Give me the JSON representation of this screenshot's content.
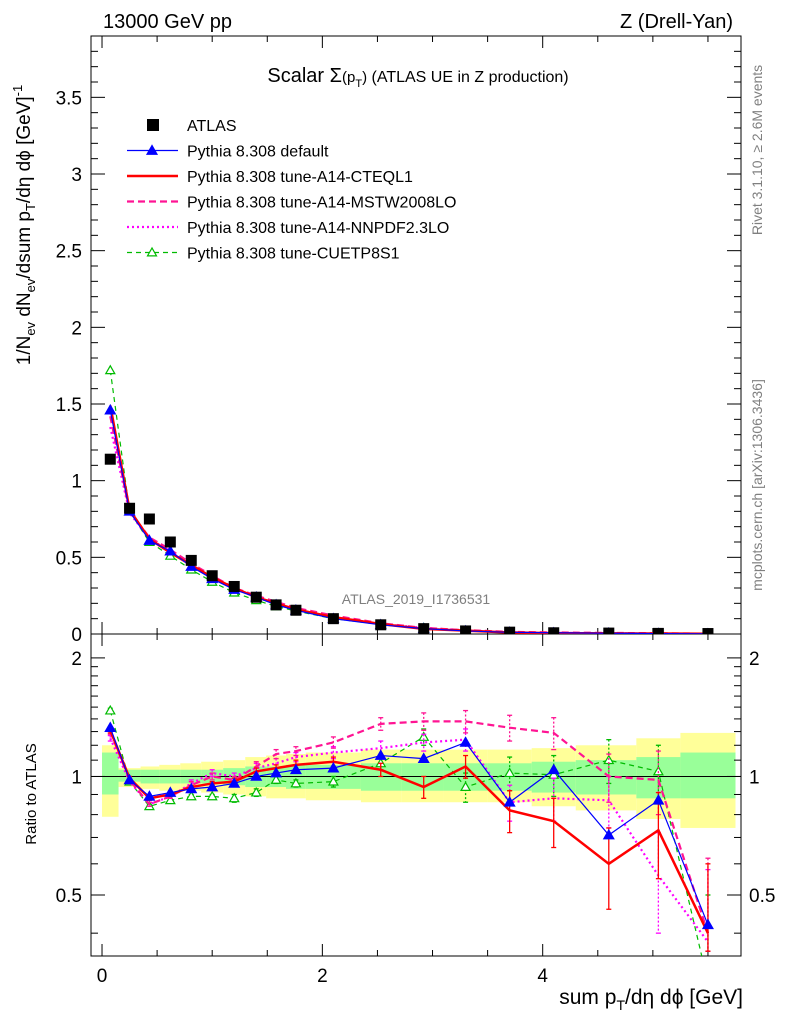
{
  "header": {
    "left": "13000 GeV pp",
    "right": "Z (Drell-Yan)"
  },
  "side_labels": {
    "rivet": "Rivet 3.1.10, ≥ 2.6M events",
    "mcplots": "mcplots.cern.ch [arXiv:1306.3436]"
  },
  "watermark": "ATLAS_2019_I1736531",
  "chart_data": {
    "type": "scatter",
    "title": {
      "main": "Scalar ",
      "sigma": "Σ",
      "paren_open": "(p",
      "sub": "T",
      "paren_close": ")",
      "rest": " (ATLAS UE in Z production)"
    },
    "xlabel": {
      "a": "sum p",
      "sub": "T",
      "b": "/dη dϕ [GeV]"
    },
    "ylabel": {
      "p1": "1/N",
      "p1_sub": "ev",
      "p2": " dN",
      "p2_sub": "ev",
      "p3": "/dsum p",
      "p3_sub": "T",
      "p4": "/dη dϕ  [GeV]",
      "p4_sup": "-1"
    },
    "ratio_ylabel": "Ratio to ATLAS",
    "xlim": [
      -0.1,
      5.8
    ],
    "ylim_main": [
      0,
      3.9
    ],
    "ylim_ratio": [
      0.35,
      2.3
    ],
    "xticks": [
      0,
      2,
      4
    ],
    "xtick_labels": [
      "0",
      "2",
      "4"
    ],
    "yticks_main": [
      0,
      0.5,
      1,
      1.5,
      2,
      2.5,
      3,
      3.5
    ],
    "ytick_labels_main": [
      "0",
      "0.5",
      "1",
      "1.5",
      "2",
      "2.5",
      "3",
      "3.5"
    ],
    "yticks_ratio": [
      0.5,
      1,
      2
    ],
    "ytick_labels_ratio": [
      "0.5",
      "1",
      "2"
    ],
    "x": [
      0.075,
      0.25,
      0.43,
      0.62,
      0.81,
      1.0,
      1.2,
      1.4,
      1.58,
      1.76,
      2.1,
      2.53,
      2.92,
      3.3,
      3.7,
      4.1,
      4.6,
      5.05,
      5.5
    ],
    "bin_edges": [
      0.0,
      0.15,
      0.35,
      0.52,
      0.71,
      0.9,
      1.1,
      1.3,
      1.49,
      1.67,
      1.85,
      2.35,
      2.72,
      3.1,
      3.5,
      3.9,
      4.3,
      4.85,
      5.25,
      5.75
    ],
    "band_inner": [
      [
        0.9,
        1.15
      ],
      [
        0.97,
        1.04
      ],
      [
        0.96,
        1.04
      ],
      [
        0.96,
        1.04
      ],
      [
        0.96,
        1.04
      ],
      [
        0.96,
        1.04
      ],
      [
        0.95,
        1.05
      ],
      [
        0.94,
        1.06
      ],
      [
        0.94,
        1.06
      ],
      [
        0.93,
        1.07
      ],
      [
        0.93,
        1.07
      ],
      [
        0.92,
        1.08
      ],
      [
        0.92,
        1.08
      ],
      [
        0.92,
        1.08
      ],
      [
        0.92,
        1.08
      ],
      [
        0.91,
        1.09
      ],
      [
        0.9,
        1.1
      ],
      [
        0.88,
        1.12
      ],
      [
        0.88,
        1.15
      ]
    ],
    "band_outer": [
      [
        0.79,
        1.2
      ],
      [
        0.94,
        1.05
      ],
      [
        0.93,
        1.06
      ],
      [
        0.92,
        1.07
      ],
      [
        0.92,
        1.08
      ],
      [
        0.91,
        1.09
      ],
      [
        0.9,
        1.1
      ],
      [
        0.89,
        1.12
      ],
      [
        0.88,
        1.13
      ],
      [
        0.88,
        1.14
      ],
      [
        0.87,
        1.15
      ],
      [
        0.86,
        1.17
      ],
      [
        0.86,
        1.17
      ],
      [
        0.86,
        1.17
      ],
      [
        0.86,
        1.17
      ],
      [
        0.84,
        1.18
      ],
      [
        0.82,
        1.2
      ],
      [
        0.78,
        1.25
      ],
      [
        0.74,
        1.29
      ]
    ],
    "series": [
      {
        "name": "ATLAS",
        "color": "#000000",
        "style": "data",
        "values": [
          1.14,
          0.82,
          0.75,
          0.6,
          0.48,
          0.38,
          0.31,
          0.24,
          0.19,
          0.155,
          0.1,
          0.06,
          0.035,
          0.02,
          0.012,
          0.008,
          0.006,
          0.004,
          0.003
        ]
      },
      {
        "name": "Pythia 8.308 default",
        "color": "#0000ff",
        "style": "solid-triangle",
        "values": [
          1.46,
          0.8,
          0.61,
          0.54,
          0.44,
          0.36,
          0.29,
          0.24,
          0.19,
          0.155,
          0.1,
          0.06,
          0.035,
          0.02,
          0.011,
          0.008,
          0.005,
          0.003,
          0.001
        ],
        "ratio": [
          1.33,
          0.98,
          0.89,
          0.91,
          0.93,
          0.94,
          0.96,
          1.0,
          1.02,
          1.04,
          1.05,
          1.13,
          1.11,
          1.22,
          0.86,
          1.04,
          0.71,
          0.87,
          0.42
        ]
      },
      {
        "name": "Pythia 8.308 tune-A14-CTEQL1",
        "color": "#ff0000",
        "style": "solid-thick",
        "values": [
          1.49,
          0.81,
          0.62,
          0.53,
          0.45,
          0.37,
          0.3,
          0.24,
          0.2,
          0.16,
          0.11,
          0.065,
          0.033,
          0.022,
          0.01,
          0.006,
          0.004,
          0.003,
          0.0013
        ],
        "ratio": [
          1.31,
          0.99,
          0.88,
          0.9,
          0.94,
          0.96,
          0.97,
          1.03,
          1.05,
          1.07,
          1.09,
          1.04,
          0.94,
          1.06,
          0.82,
          0.77,
          0.6,
          0.73,
          0.4
        ],
        "ratio_err": [
          0.02,
          0.01,
          0.01,
          0.01,
          0.01,
          0.01,
          0.02,
          0.02,
          0.02,
          0.03,
          0.03,
          0.04,
          0.06,
          0.07,
          0.1,
          0.11,
          0.14,
          0.18,
          0.2
        ]
      },
      {
        "name": "Pythia 8.308 tune-A14-MSTW2008LO",
        "color": "#ff1493",
        "style": "dashed",
        "values": [
          1.42,
          0.8,
          0.63,
          0.55,
          0.46,
          0.38,
          0.3,
          0.25,
          0.21,
          0.17,
          0.12,
          0.07,
          0.04,
          0.025,
          0.014,
          0.01,
          0.007,
          0.005,
          0.002
        ],
        "ratio": [
          1.3,
          0.98,
          0.85,
          0.89,
          0.95,
          1.0,
          0.98,
          1.06,
          1.14,
          1.16,
          1.22,
          1.36,
          1.38,
          1.38,
          1.33,
          1.29,
          1.0,
          0.98,
          0.4
        ],
        "ratio_err": [
          0.02,
          0.01,
          0.01,
          0.01,
          0.02,
          0.02,
          0.02,
          0.03,
          0.03,
          0.03,
          0.04,
          0.05,
          0.07,
          0.09,
          0.1,
          0.12,
          0.14,
          0.18,
          0.22
        ]
      },
      {
        "name": "Pythia 8.308 tune-A14-NNPDF2.3LO",
        "color": "#ff00ff",
        "style": "dotted",
        "values": [
          1.35,
          0.79,
          0.62,
          0.54,
          0.45,
          0.37,
          0.3,
          0.24,
          0.2,
          0.16,
          0.11,
          0.066,
          0.04,
          0.024,
          0.011,
          0.007,
          0.005,
          0.0025,
          0.0012
        ],
        "ratio": [
          1.25,
          0.97,
          0.85,
          0.89,
          0.96,
          1.02,
          1.0,
          1.05,
          1.08,
          1.12,
          1.15,
          1.18,
          1.22,
          1.24,
          0.86,
          0.88,
          0.87,
          0.56,
          0.38
        ],
        "ratio_err": [
          0.02,
          0.01,
          0.01,
          0.01,
          0.02,
          0.02,
          0.02,
          0.03,
          0.03,
          0.03,
          0.04,
          0.05,
          0.06,
          0.08,
          0.09,
          0.11,
          0.13,
          0.16,
          0.2
        ]
      },
      {
        "name": "Pythia 8.308 tune-CUETP8S1",
        "color": "#00bb00",
        "style": "dashed-open-triangle",
        "values": [
          1.72,
          0.8,
          0.6,
          0.51,
          0.42,
          0.34,
          0.27,
          0.22,
          0.18,
          0.15,
          0.1,
          0.062,
          0.04,
          0.019,
          0.012,
          0.008,
          0.007,
          0.004,
          0.001
        ],
        "ratio": [
          1.47,
          0.97,
          0.84,
          0.87,
          0.89,
          0.89,
          0.88,
          0.91,
          0.98,
          0.96,
          0.97,
          1.08,
          1.26,
          0.94,
          1.02,
          1.01,
          1.1,
          1.03,
          0.3
        ],
        "ratio_err": [
          0.02,
          0.01,
          0.01,
          0.01,
          0.01,
          0.01,
          0.02,
          0.02,
          0.02,
          0.02,
          0.03,
          0.04,
          0.06,
          0.08,
          0.1,
          0.12,
          0.14,
          0.17,
          0.2
        ]
      }
    ]
  }
}
